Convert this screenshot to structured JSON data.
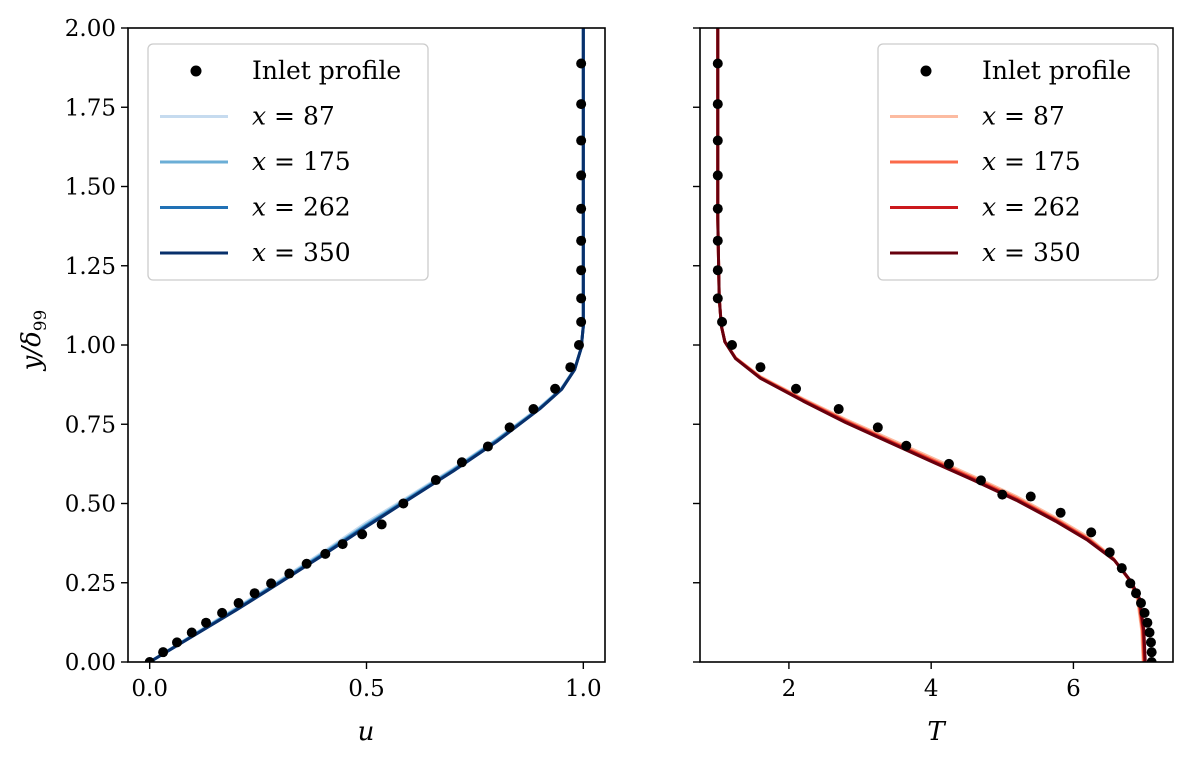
{
  "chart_data": [
    {
      "type": "line",
      "panel": "left",
      "xlabel": "u",
      "ylabel": "y/δ99",
      "ylabel_main": "y/δ",
      "ylabel_sub": "99",
      "xlim": [
        -0.05,
        1.05
      ],
      "ylim": [
        0.0,
        2.0
      ],
      "xticks": [
        "0.0",
        "0.5",
        "1.0"
      ],
      "xtick_values": [
        0.0,
        0.5,
        1.0
      ],
      "yticks": [
        "0.00",
        "0.25",
        "0.50",
        "0.75",
        "1.00",
        "1.25",
        "1.50",
        "1.75",
        "2.00"
      ],
      "ytick_values": [
        0.0,
        0.25,
        0.5,
        0.75,
        1.0,
        1.25,
        1.5,
        1.75,
        2.0
      ],
      "legend_position": "upper-left",
      "inlet": {
        "name": "Inlet profile",
        "color": "#000000",
        "points": [
          [
            0.0,
            0.0
          ],
          [
            0.031,
            0.031
          ],
          [
            0.063,
            0.062
          ],
          [
            0.097,
            0.093
          ],
          [
            0.13,
            0.124
          ],
          [
            0.167,
            0.155
          ],
          [
            0.205,
            0.186
          ],
          [
            0.242,
            0.217
          ],
          [
            0.28,
            0.248
          ],
          [
            0.322,
            0.279
          ],
          [
            0.362,
            0.31
          ],
          [
            0.405,
            0.341
          ],
          [
            0.445,
            0.372
          ],
          [
            0.49,
            0.403
          ],
          [
            0.535,
            0.434
          ],
          [
            0.585,
            0.5
          ],
          [
            0.66,
            0.574
          ],
          [
            0.72,
            0.63
          ],
          [
            0.78,
            0.68
          ],
          [
            0.83,
            0.74
          ],
          [
            0.885,
            0.798
          ],
          [
            0.935,
            0.862
          ],
          [
            0.97,
            0.93
          ],
          [
            0.99,
            1.0
          ],
          [
            0.995,
            1.073
          ],
          [
            0.995,
            1.147
          ],
          [
            0.995,
            1.236
          ],
          [
            0.995,
            1.329
          ],
          [
            0.995,
            1.43
          ],
          [
            0.995,
            1.535
          ],
          [
            0.995,
            1.645
          ],
          [
            0.995,
            1.76
          ],
          [
            0.995,
            1.888
          ]
        ]
      },
      "series": [
        {
          "name": "x = 87",
          "label_lhs": "x",
          "label_rhs": " = 87",
          "color": "#c6dbef",
          "points": [
            [
              0.0,
              0.0
            ],
            [
              0.1,
              0.086
            ],
            [
              0.2,
              0.171
            ],
            [
              0.3,
              0.258
            ],
            [
              0.4,
              0.347
            ],
            [
              0.5,
              0.44
            ],
            [
              0.6,
              0.524
            ],
            [
              0.7,
              0.61
            ],
            [
              0.8,
              0.702
            ],
            [
              0.9,
              0.804
            ],
            [
              0.95,
              0.864
            ],
            [
              0.98,
              0.925
            ],
            [
              0.995,
              0.99
            ],
            [
              1.0,
              1.06
            ],
            [
              1.0,
              1.3
            ],
            [
              1.0,
              2.0
            ]
          ]
        },
        {
          "name": "x = 175",
          "label_lhs": "x",
          "label_rhs": " = 175",
          "color": "#6baed6",
          "points": [
            [
              0.0,
              0.0
            ],
            [
              0.1,
              0.084
            ],
            [
              0.2,
              0.168
            ],
            [
              0.3,
              0.254
            ],
            [
              0.4,
              0.343
            ],
            [
              0.5,
              0.434
            ],
            [
              0.6,
              0.52
            ],
            [
              0.7,
              0.607
            ],
            [
              0.8,
              0.7
            ],
            [
              0.9,
              0.802
            ],
            [
              0.95,
              0.862
            ],
            [
              0.98,
              0.924
            ],
            [
              0.995,
              0.99
            ],
            [
              1.0,
              1.06
            ],
            [
              1.0,
              1.3
            ],
            [
              1.0,
              2.0
            ]
          ]
        },
        {
          "name": "x = 262",
          "label_lhs": "x",
          "label_rhs": " = 262",
          "color": "#2171b5",
          "points": [
            [
              0.0,
              0.0
            ],
            [
              0.1,
              0.083
            ],
            [
              0.2,
              0.166
            ],
            [
              0.3,
              0.252
            ],
            [
              0.4,
              0.34
            ],
            [
              0.5,
              0.43
            ],
            [
              0.6,
              0.517
            ],
            [
              0.7,
              0.604
            ],
            [
              0.8,
              0.697
            ],
            [
              0.9,
              0.8
            ],
            [
              0.95,
              0.861
            ],
            [
              0.98,
              0.923
            ],
            [
              0.995,
              0.99
            ],
            [
              1.0,
              1.06
            ],
            [
              1.0,
              1.3
            ],
            [
              1.0,
              2.0
            ]
          ]
        },
        {
          "name": "x = 350",
          "label_lhs": "x",
          "label_rhs": " = 350",
          "color": "#08306b",
          "points": [
            [
              0.0,
              0.0
            ],
            [
              0.1,
              0.082
            ],
            [
              0.2,
              0.164
            ],
            [
              0.3,
              0.25
            ],
            [
              0.4,
              0.337
            ],
            [
              0.5,
              0.427
            ],
            [
              0.6,
              0.515
            ],
            [
              0.7,
              0.602
            ],
            [
              0.8,
              0.695
            ],
            [
              0.9,
              0.799
            ],
            [
              0.95,
              0.86
            ],
            [
              0.98,
              0.922
            ],
            [
              0.995,
              0.99
            ],
            [
              1.0,
              1.06
            ],
            [
              1.0,
              1.3
            ],
            [
              1.0,
              2.0
            ]
          ]
        }
      ]
    },
    {
      "type": "line",
      "panel": "right",
      "xlabel": "T",
      "xlim": [
        0.75,
        7.4
      ],
      "ylim": [
        0.0,
        2.0
      ],
      "xticks": [
        "2",
        "4",
        "6"
      ],
      "xtick_values": [
        2,
        4,
        6
      ],
      "ytick_values": [
        0.0,
        0.25,
        0.5,
        0.75,
        1.0,
        1.25,
        1.5,
        1.75,
        2.0
      ],
      "legend_position": "upper-right",
      "inlet": {
        "name": "Inlet profile",
        "color": "#000000",
        "points": [
          [
            7.1,
            0.0
          ],
          [
            7.1,
            0.031
          ],
          [
            7.09,
            0.062
          ],
          [
            7.07,
            0.093
          ],
          [
            7.04,
            0.124
          ],
          [
            7.0,
            0.155
          ],
          [
            6.95,
            0.186
          ],
          [
            6.88,
            0.217
          ],
          [
            6.8,
            0.248
          ],
          [
            6.68,
            0.296
          ],
          [
            6.51,
            0.346
          ],
          [
            6.25,
            0.409
          ],
          [
            5.82,
            0.471
          ],
          [
            5.4,
            0.522
          ],
          [
            5.0,
            0.528
          ],
          [
            4.7,
            0.573
          ],
          [
            4.25,
            0.625
          ],
          [
            3.65,
            0.682
          ],
          [
            3.25,
            0.74
          ],
          [
            2.7,
            0.798
          ],
          [
            2.1,
            0.862
          ],
          [
            1.6,
            0.93
          ],
          [
            1.2,
            1.0
          ],
          [
            1.06,
            1.073
          ],
          [
            1.0,
            1.147
          ],
          [
            1.0,
            1.236
          ],
          [
            1.0,
            1.329
          ],
          [
            1.0,
            1.43
          ],
          [
            1.0,
            1.535
          ],
          [
            1.0,
            1.645
          ],
          [
            1.0,
            1.76
          ],
          [
            1.0,
            1.888
          ]
        ]
      },
      "series": [
        {
          "name": "x = 87",
          "label_lhs": "x",
          "label_rhs": " = 87",
          "color": "#fcbba1",
          "points": [
            [
              6.98,
              0.0
            ],
            [
              6.96,
              0.1
            ],
            [
              6.9,
              0.2
            ],
            [
              6.78,
              0.26
            ],
            [
              6.55,
              0.33
            ],
            [
              6.2,
              0.395
            ],
            [
              5.75,
              0.455
            ],
            [
              5.2,
              0.522
            ],
            [
              4.6,
              0.585
            ],
            [
              4.0,
              0.645
            ],
            [
              3.4,
              0.705
            ],
            [
              2.8,
              0.765
            ],
            [
              2.2,
              0.83
            ],
            [
              1.6,
              0.9
            ],
            [
              1.25,
              0.96
            ],
            [
              1.1,
              1.01
            ],
            [
              1.05,
              1.06
            ],
            [
              1.02,
              1.15
            ],
            [
              1.0,
              1.4
            ],
            [
              1.0,
              2.0
            ]
          ]
        },
        {
          "name": "x = 175",
          "label_lhs": "x",
          "label_rhs": " = 175",
          "color": "#fb6a4a",
          "points": [
            [
              6.99,
              0.0
            ],
            [
              6.97,
              0.1
            ],
            [
              6.91,
              0.2
            ],
            [
              6.79,
              0.258
            ],
            [
              6.56,
              0.326
            ],
            [
              6.2,
              0.39
            ],
            [
              5.75,
              0.45
            ],
            [
              5.2,
              0.517
            ],
            [
              4.6,
              0.58
            ],
            [
              4.0,
              0.64
            ],
            [
              3.4,
              0.7
            ],
            [
              2.8,
              0.761
            ],
            [
              2.2,
              0.827
            ],
            [
              1.6,
              0.898
            ],
            [
              1.25,
              0.959
            ],
            [
              1.1,
              1.01
            ],
            [
              1.05,
              1.06
            ],
            [
              1.02,
              1.15
            ],
            [
              1.0,
              1.4
            ],
            [
              1.0,
              2.0
            ]
          ]
        },
        {
          "name": "x = 262",
          "label_lhs": "x",
          "label_rhs": " = 262",
          "color": "#cb181d",
          "points": [
            [
              7.0,
              0.0
            ],
            [
              6.98,
              0.1
            ],
            [
              6.92,
              0.2
            ],
            [
              6.8,
              0.256
            ],
            [
              6.57,
              0.323
            ],
            [
              6.2,
              0.387
            ],
            [
              5.75,
              0.447
            ],
            [
              5.2,
              0.513
            ],
            [
              4.6,
              0.576
            ],
            [
              4.0,
              0.636
            ],
            [
              3.4,
              0.697
            ],
            [
              2.8,
              0.758
            ],
            [
              2.2,
              0.825
            ],
            [
              1.6,
              0.896
            ],
            [
              1.25,
              0.958
            ],
            [
              1.1,
              1.01
            ],
            [
              1.05,
              1.06
            ],
            [
              1.02,
              1.15
            ],
            [
              1.0,
              1.4
            ],
            [
              1.0,
              2.0
            ]
          ]
        },
        {
          "name": "x = 350",
          "label_lhs": "x",
          "label_rhs": " = 350",
          "color": "#67000d",
          "points": [
            [
              7.01,
              0.0
            ],
            [
              6.99,
              0.1
            ],
            [
              6.93,
              0.2
            ],
            [
              6.81,
              0.254
            ],
            [
              6.58,
              0.32
            ],
            [
              6.2,
              0.384
            ],
            [
              5.75,
              0.444
            ],
            [
              5.2,
              0.51
            ],
            [
              4.6,
              0.573
            ],
            [
              4.0,
              0.633
            ],
            [
              3.4,
              0.694
            ],
            [
              2.8,
              0.755
            ],
            [
              2.2,
              0.823
            ],
            [
              1.6,
              0.895
            ],
            [
              1.25,
              0.957
            ],
            [
              1.1,
              1.01
            ],
            [
              1.05,
              1.06
            ],
            [
              1.02,
              1.15
            ],
            [
              1.0,
              1.4
            ],
            [
              1.0,
              2.0
            ]
          ]
        }
      ]
    }
  ]
}
